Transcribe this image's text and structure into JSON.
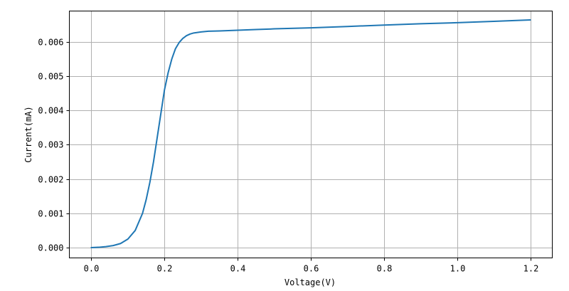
{
  "chart_data": {
    "type": "line",
    "title": "",
    "xlabel": "Voltage(V)",
    "ylabel": "Current(mA)",
    "xlim": [
      -0.06,
      1.26
    ],
    "ylim": [
      -0.0003,
      0.0069
    ],
    "grid": true,
    "line_color": "#1f77b4",
    "x_ticks": [
      {
        "value": 0.0,
        "label": "0.0"
      },
      {
        "value": 0.2,
        "label": "0.2"
      },
      {
        "value": 0.4,
        "label": "0.4"
      },
      {
        "value": 0.6,
        "label": "0.6"
      },
      {
        "value": 0.8,
        "label": "0.8"
      },
      {
        "value": 1.0,
        "label": "1.0"
      },
      {
        "value": 1.2,
        "label": "1.2"
      }
    ],
    "y_ticks": [
      {
        "value": 0.0,
        "label": "0.000"
      },
      {
        "value": 0.001,
        "label": "0.001"
      },
      {
        "value": 0.002,
        "label": "0.002"
      },
      {
        "value": 0.003,
        "label": "0.003"
      },
      {
        "value": 0.004,
        "label": "0.004"
      },
      {
        "value": 0.005,
        "label": "0.005"
      },
      {
        "value": 0.006,
        "label": "0.006"
      }
    ],
    "series": [
      {
        "x": [
          0.0,
          0.02,
          0.04,
          0.06,
          0.08,
          0.1,
          0.12,
          0.14,
          0.15,
          0.16,
          0.17,
          0.18,
          0.19,
          0.2,
          0.21,
          0.22,
          0.23,
          0.24,
          0.25,
          0.26,
          0.27,
          0.28,
          0.3,
          0.32,
          0.35,
          0.4,
          0.45,
          0.5,
          0.6,
          0.7,
          0.8,
          0.9,
          1.0,
          1.1,
          1.2
        ],
        "y": [
          0.0,
          1e-05,
          3e-05,
          6e-05,
          0.00012,
          0.00025,
          0.0005,
          0.001,
          0.0014,
          0.0019,
          0.0025,
          0.0032,
          0.0039,
          0.0046,
          0.0051,
          0.0055,
          0.0058,
          0.00598,
          0.0061,
          0.00618,
          0.00623,
          0.00626,
          0.00629,
          0.00631,
          0.00632,
          0.00634,
          0.00636,
          0.00638,
          0.00641,
          0.00645,
          0.00649,
          0.00653,
          0.00656,
          0.0066,
          0.00664
        ]
      }
    ]
  }
}
